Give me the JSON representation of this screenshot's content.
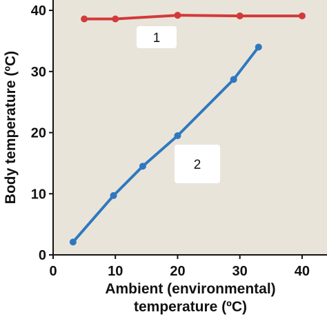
{
  "chart_data": {
    "type": "line",
    "x_label": "Ambient (environmental)",
    "x_label_line2": "temperature (ºC)",
    "y_label": "Body temperature (ºC)",
    "annotations": [
      "1",
      "2"
    ],
    "series": [
      {
        "name": "1",
        "color": "#d23a3a",
        "x": [
          5,
          10,
          20,
          30,
          40
        ],
        "values": [
          38.6,
          38.6,
          39.2,
          39.1,
          39.1
        ]
      },
      {
        "name": "2",
        "color": "#2f78c0",
        "x": [
          3.2,
          9.7,
          14.4,
          20,
          29,
          33
        ],
        "values": [
          2.1,
          9.7,
          14.5,
          19.5,
          28.7,
          34
        ]
      }
    ],
    "xlim": [
      0,
      44
    ],
    "ylim": [
      0,
      41.7
    ],
    "xticks": [
      0,
      10,
      20,
      30,
      40
    ],
    "yticks": [
      0,
      10,
      20,
      30,
      40
    ]
  }
}
